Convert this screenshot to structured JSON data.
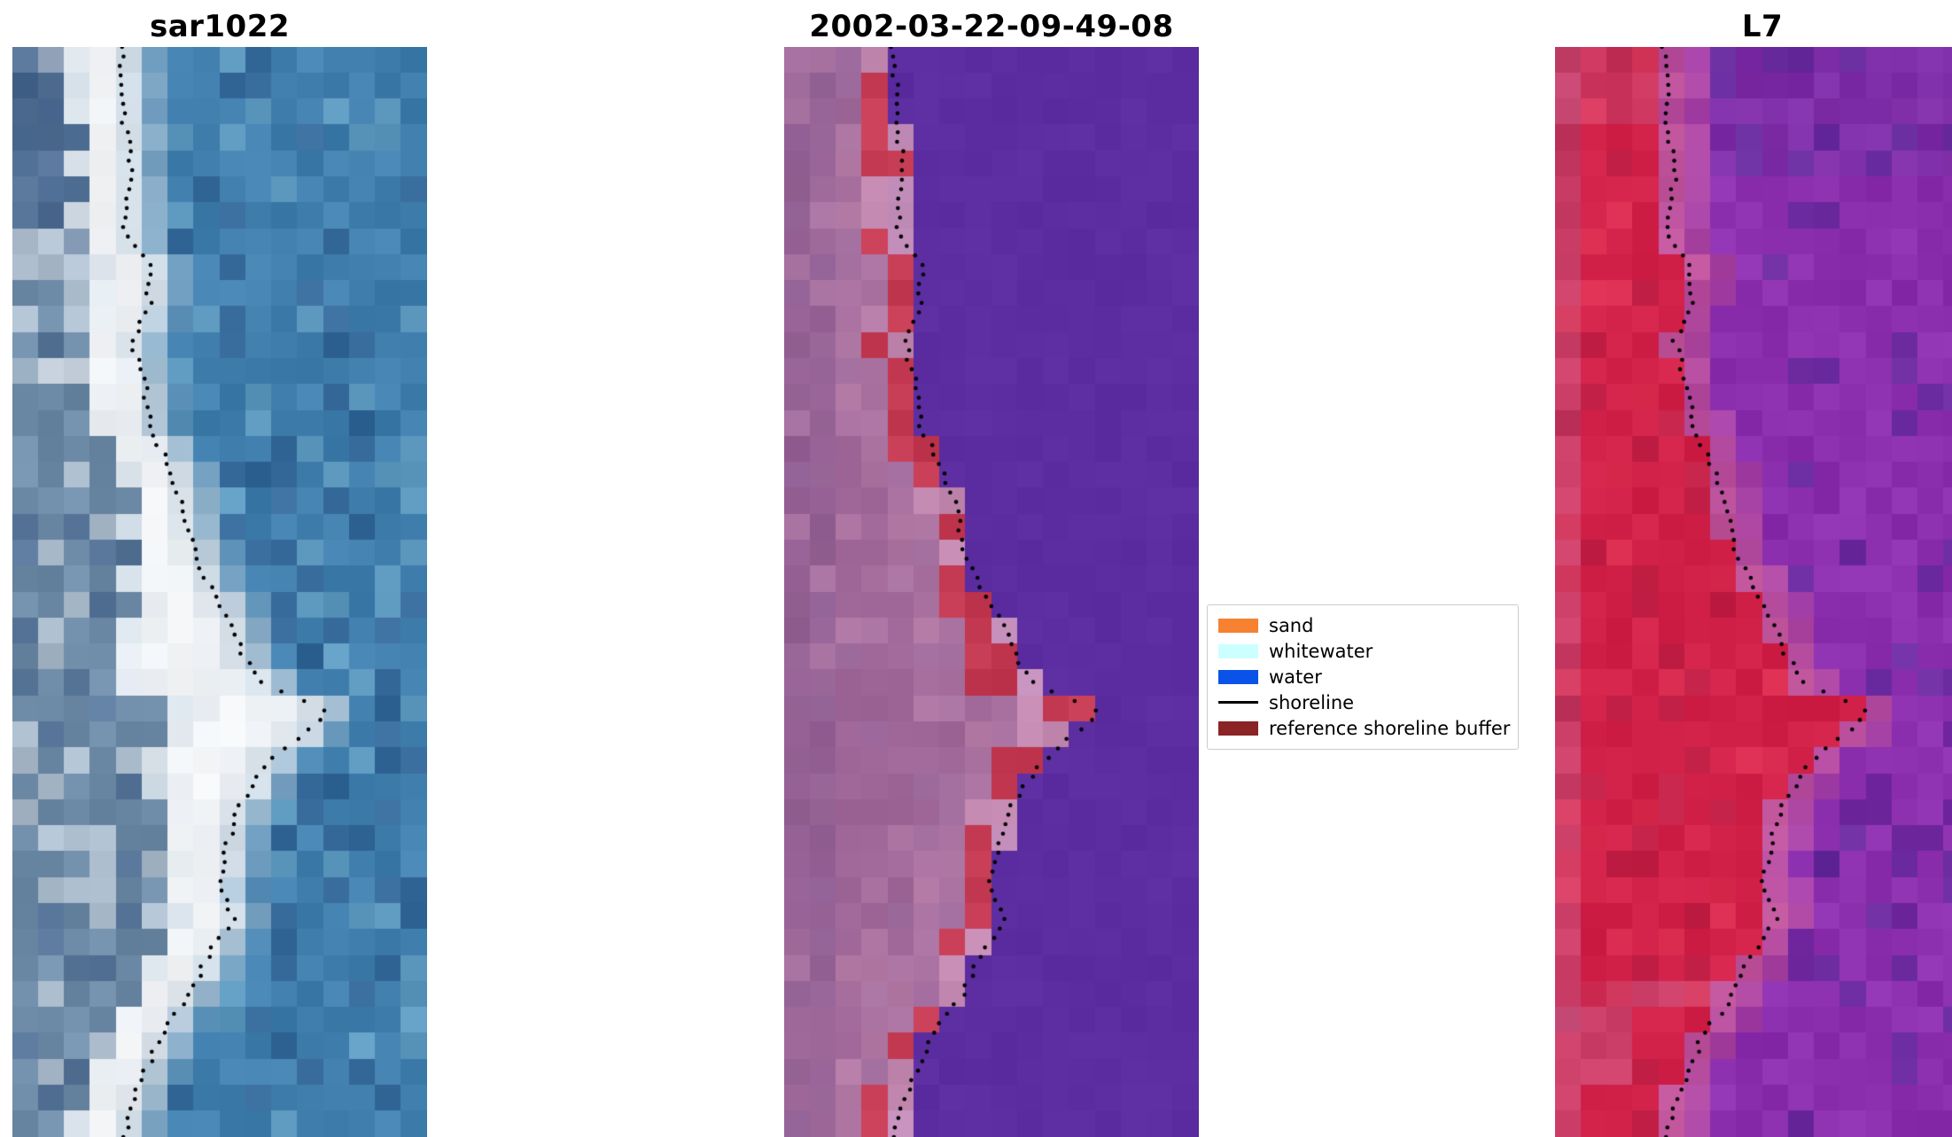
{
  "figure": {
    "background": "#ffffff"
  },
  "panels": [
    {
      "title": "sar1022",
      "palette": {
        "water": "#4180ae",
        "water_dark": "#35699a",
        "water_light": "#5e99c0",
        "beach": "#f3f5f7",
        "beach_edge": "#c8d6e2",
        "land": "#6e8ba8",
        "land_dark": "#3d5d88"
      }
    },
    {
      "title": "2002-03-22-09-49-08",
      "palette": {
        "water": "#5b2da0",
        "buffer": "#c43a52",
        "land": "#a0699a",
        "land_light": "#c288b0",
        "land_dark": "#7c5187",
        "edge": "#c58fbc"
      }
    },
    {
      "title": "L7",
      "palette": {
        "land": "#d12148",
        "land_dark": "#a81e44",
        "rose": "#c75f8b",
        "edge": "#c0549b",
        "water": "#8c2fae",
        "water_dark": "#5e2a9a"
      }
    }
  ],
  "legend": {
    "background": "#ffffff",
    "border_color": "#cccccc",
    "items": [
      {
        "label": "sand",
        "color": "#f68231",
        "kind": "patch"
      },
      {
        "label": "whitewater",
        "color": "#ccffff",
        "kind": "patch"
      },
      {
        "label": "water",
        "color": "#0b52e8",
        "kind": "patch"
      },
      {
        "label": "shoreline",
        "color": "#000000",
        "kind": "line"
      },
      {
        "label": "reference shoreline buffer",
        "color": "#8b2424",
        "kind": "patch"
      }
    ]
  },
  "chart_data": {
    "type": "image",
    "titles": [
      "sar1022",
      "2002-03-22-09-49-08",
      "L7"
    ],
    "legend_entries": [
      "sand",
      "whitewater",
      "water",
      "shoreline",
      "reference shoreline buffer"
    ],
    "shoreline_color": "#000000",
    "shoreline_path": [
      [
        0.26,
        0.0
      ],
      [
        0.27,
        0.04
      ],
      [
        0.27,
        0.07
      ],
      [
        0.29,
        0.11
      ],
      [
        0.28,
        0.14
      ],
      [
        0.27,
        0.17
      ],
      [
        0.33,
        0.2
      ],
      [
        0.33,
        0.235
      ],
      [
        0.29,
        0.27
      ],
      [
        0.32,
        0.315
      ],
      [
        0.33,
        0.35
      ],
      [
        0.38,
        0.385
      ],
      [
        0.41,
        0.42
      ],
      [
        0.43,
        0.455
      ],
      [
        0.47,
        0.49
      ],
      [
        0.52,
        0.525
      ],
      [
        0.56,
        0.56
      ],
      [
        0.61,
        0.585
      ],
      [
        0.76,
        0.61
      ],
      [
        0.67,
        0.64
      ],
      [
        0.61,
        0.66
      ],
      [
        0.55,
        0.695
      ],
      [
        0.52,
        0.73
      ],
      [
        0.5,
        0.765
      ],
      [
        0.53,
        0.8
      ],
      [
        0.47,
        0.835
      ],
      [
        0.43,
        0.87
      ],
      [
        0.36,
        0.905
      ],
      [
        0.32,
        0.94
      ],
      [
        0.28,
        0.975
      ],
      [
        0.27,
        1.0
      ]
    ]
  }
}
